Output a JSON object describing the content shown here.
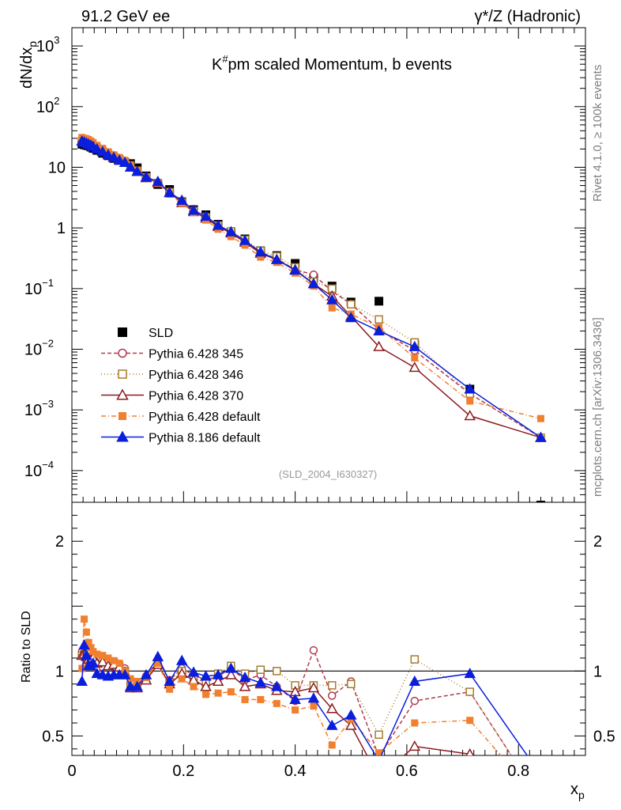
{
  "header": {
    "left": "91.2 GeV ee",
    "right_main": "γ*/Z (Hadronic)"
  },
  "side": {
    "rivet": "Rivet 4.1.0, ≥ 100k events",
    "mcplots": "mcplots.cern.ch [arXiv:1306.3436]"
  },
  "chart_data": [
    {
      "type": "line",
      "panel": "main",
      "title": "K#pm scaled Momentum, b events",
      "title_parts": {
        "before": "K",
        "sup": "#",
        "after": "pm scaled Momentum, b events"
      },
      "ylabel": "dN/dx_p",
      "ylabel_parts": {
        "main": "dN/dx",
        "sub": "p"
      },
      "yscale": "log",
      "ylim": [
        3e-05,
        2000
      ],
      "xlim": [
        0,
        0.92
      ],
      "watermark": "(SLD_2004_I630327)",
      "y_ticks": [
        {
          "v": 1000,
          "b": "10",
          "e": "3"
        },
        {
          "v": 100,
          "b": "10",
          "e": "2"
        },
        {
          "v": 10,
          "b": "10",
          "e": ""
        },
        {
          "v": 1,
          "b": "1",
          "e": ""
        },
        {
          "v": 0.1,
          "b": "10",
          "e": "−1"
        },
        {
          "v": 0.01,
          "b": "10",
          "e": "−2"
        },
        {
          "v": 0.001,
          "b": "10",
          "e": "−3"
        },
        {
          "v": 0.0001,
          "b": "10",
          "e": "−4"
        }
      ],
      "x": [
        0.018,
        0.022,
        0.026,
        0.03,
        0.034,
        0.038,
        0.045,
        0.055,
        0.065,
        0.075,
        0.085,
        0.095,
        0.105,
        0.117,
        0.133,
        0.154,
        0.175,
        0.197,
        0.218,
        0.24,
        0.262,
        0.285,
        0.31,
        0.338,
        0.367,
        0.4,
        0.433,
        0.466,
        0.5,
        0.55,
        0.614,
        0.713,
        0.84
      ],
      "series": [
        {
          "name": "SLD",
          "color": "#000000",
          "marker": "square-filled",
          "dash": "none",
          "values": [
            24,
            23.5,
            23,
            22.5,
            21.5,
            20.5,
            19,
            17,
            15.5,
            14,
            13,
            12,
            11.5,
            9.8,
            7.2,
            5.2,
            4.3,
            2.7,
            2.0,
            1.65,
            1.15,
            0.85,
            0.66,
            0.42,
            0.35,
            0.26,
            0.15,
            0.11,
            0.06,
            0.062,
            0.012,
            0.0022,
            2.7e-05
          ],
          "ratio": []
        },
        {
          "name": "Pythia 6.428 345",
          "color": "#b03a4e",
          "marker": "circle-open",
          "dash": "5,3",
          "values": [
            28,
            27,
            26,
            25,
            24,
            23,
            21,
            19,
            17,
            15.5,
            14,
            12.5,
            10.5,
            8.8,
            6.9,
            5.6,
            4.0,
            2.7,
            1.95,
            1.55,
            1.1,
            0.87,
            0.61,
            0.4,
            0.31,
            0.205,
            0.17,
            0.09,
            0.056,
            0.021,
            0.0095,
            0.00185,
            0.00035
          ],
          "ratio": [
            1.15,
            1.14,
            1.1,
            1.06,
            1.06,
            1.06,
            1.02,
            1.03,
            1.04,
            1.03,
            1.02,
            1.02,
            0.91,
            0.9,
            0.96,
            1.08,
            0.93,
            1.02,
            0.97,
            0.93,
            0.96,
            1.02,
            0.93,
            0.97,
            0.88,
            0.77,
            1.16,
            0.81,
            0.92,
            0.34,
            0.77,
            0.84,
            0.0
          ]
        },
        {
          "name": "Pythia 6.428 346",
          "color": "#a87b2c",
          "marker": "square-open",
          "dash": "1,3",
          "values": [
            27,
            26.5,
            25.5,
            24.5,
            23.5,
            22.5,
            20.5,
            18.5,
            16.5,
            15,
            13.5,
            12,
            10,
            8.6,
            6.8,
            5.5,
            3.9,
            2.65,
            1.9,
            1.5,
            1.1,
            0.88,
            0.64,
            0.42,
            0.34,
            0.225,
            0.13,
            0.1,
            0.055,
            0.031,
            0.013,
            0.00185,
            0.00035
          ],
          "ratio": [
            1.12,
            1.13,
            1.11,
            1.09,
            1.09,
            1.1,
            1.08,
            1.09,
            1.06,
            1.07,
            1.04,
            1.0,
            0.87,
            0.88,
            0.94,
            1.06,
            0.91,
            1.0,
            0.95,
            0.91,
            0.98,
            1.04,
            0.98,
            1.01,
            1.0,
            0.89,
            0.89,
            0.89,
            0.9,
            0.51,
            1.09,
            0.84,
            0.0
          ]
        },
        {
          "name": "Pythia 6.428 370",
          "color": "#8c1c20",
          "marker": "triangle-open",
          "dash": "none",
          "values": [
            27,
            26.5,
            25.5,
            24.5,
            23.5,
            22.5,
            20.5,
            18.5,
            16.5,
            15,
            13.5,
            12,
            10,
            8.5,
            6.7,
            5.5,
            3.85,
            2.6,
            1.85,
            1.45,
            1.05,
            0.82,
            0.58,
            0.38,
            0.3,
            0.205,
            0.12,
            0.075,
            0.035,
            0.011,
            0.005,
            0.0008,
            0.00035
          ],
          "ratio": [
            1.12,
            1.13,
            1.11,
            1.09,
            1.09,
            1.1,
            1.06,
            1.07,
            1.04,
            1.05,
            1.03,
            0.99,
            0.87,
            0.87,
            0.93,
            1.05,
            0.9,
            0.98,
            0.93,
            0.88,
            0.92,
            0.97,
            0.88,
            0.9,
            0.85,
            0.84,
            0.87,
            0.71,
            0.58,
            0.18,
            0.42,
            0.36,
            0.0
          ]
        },
        {
          "name": "Pythia 6.428 default",
          "color": "#f08030",
          "marker": "square-filled",
          "dash": "6,3,1,3",
          "values": [
            31,
            30,
            29.5,
            28.5,
            27,
            25.5,
            23,
            20.5,
            18,
            16,
            14.5,
            13,
            11,
            9,
            7.0,
            5.5,
            3.6,
            2.55,
            1.8,
            1.35,
            0.95,
            0.72,
            0.52,
            0.33,
            0.27,
            0.18,
            0.11,
            0.048,
            0.038,
            0.023,
            0.0072,
            0.0014,
            0.00072
          ],
          "ratio": [
            1.02,
            1.4,
            1.3,
            1.22,
            1.18,
            1.15,
            1.13,
            1.12,
            1.1,
            1.08,
            1.06,
            1.0,
            0.94,
            0.92,
            0.95,
            1.06,
            0.86,
            0.94,
            0.88,
            0.82,
            0.83,
            0.84,
            0.78,
            0.78,
            0.75,
            0.7,
            0.73,
            0.43,
            0.63,
            0.37,
            0.6,
            0.62,
            0.0
          ]
        },
        {
          "name": "Pythia 8.186 default",
          "color": "#0a1edc",
          "marker": "triangle-filled",
          "dash": "none",
          "values": [
            27,
            26,
            25,
            24,
            23,
            22,
            20,
            18,
            16,
            14.5,
            13,
            12,
            10,
            8.5,
            6.9,
            5.8,
            3.8,
            2.85,
            1.95,
            1.55,
            1.1,
            0.86,
            0.62,
            0.4,
            0.3,
            0.2,
            0.12,
            0.065,
            0.033,
            0.02,
            0.011,
            0.0022,
            0.00035
          ],
          "ratio": [
            0.92,
            1.2,
            1.12,
            1.04,
            1.04,
            1.06,
            0.98,
            0.97,
            0.96,
            0.97,
            0.97,
            0.97,
            0.88,
            0.88,
            0.97,
            1.11,
            0.92,
            1.08,
            0.99,
            0.96,
            0.97,
            1.02,
            0.95,
            0.91,
            0.88,
            0.78,
            0.79,
            0.58,
            0.66,
            0.31,
            0.92,
            0.98,
            0.2
          ]
        }
      ]
    },
    {
      "type": "line",
      "panel": "ratio",
      "ylabel": "Ratio to SLD",
      "xlabel": "x_p",
      "xlabel_parts": {
        "main": "x",
        "sub": "p"
      },
      "ylim": [
        0.35,
        2.3
      ],
      "xlim": [
        0,
        0.92
      ],
      "y_ticks": [
        0.5,
        1,
        2
      ],
      "y_tick_labels": [
        "0.5",
        "1",
        "2"
      ],
      "x_ticks": [
        0,
        0.2,
        0.4,
        0.6,
        0.8
      ],
      "x_tick_labels": [
        "0",
        "0.2",
        "0.4",
        "0.6",
        "0.8"
      ],
      "reference_line": 1
    }
  ]
}
